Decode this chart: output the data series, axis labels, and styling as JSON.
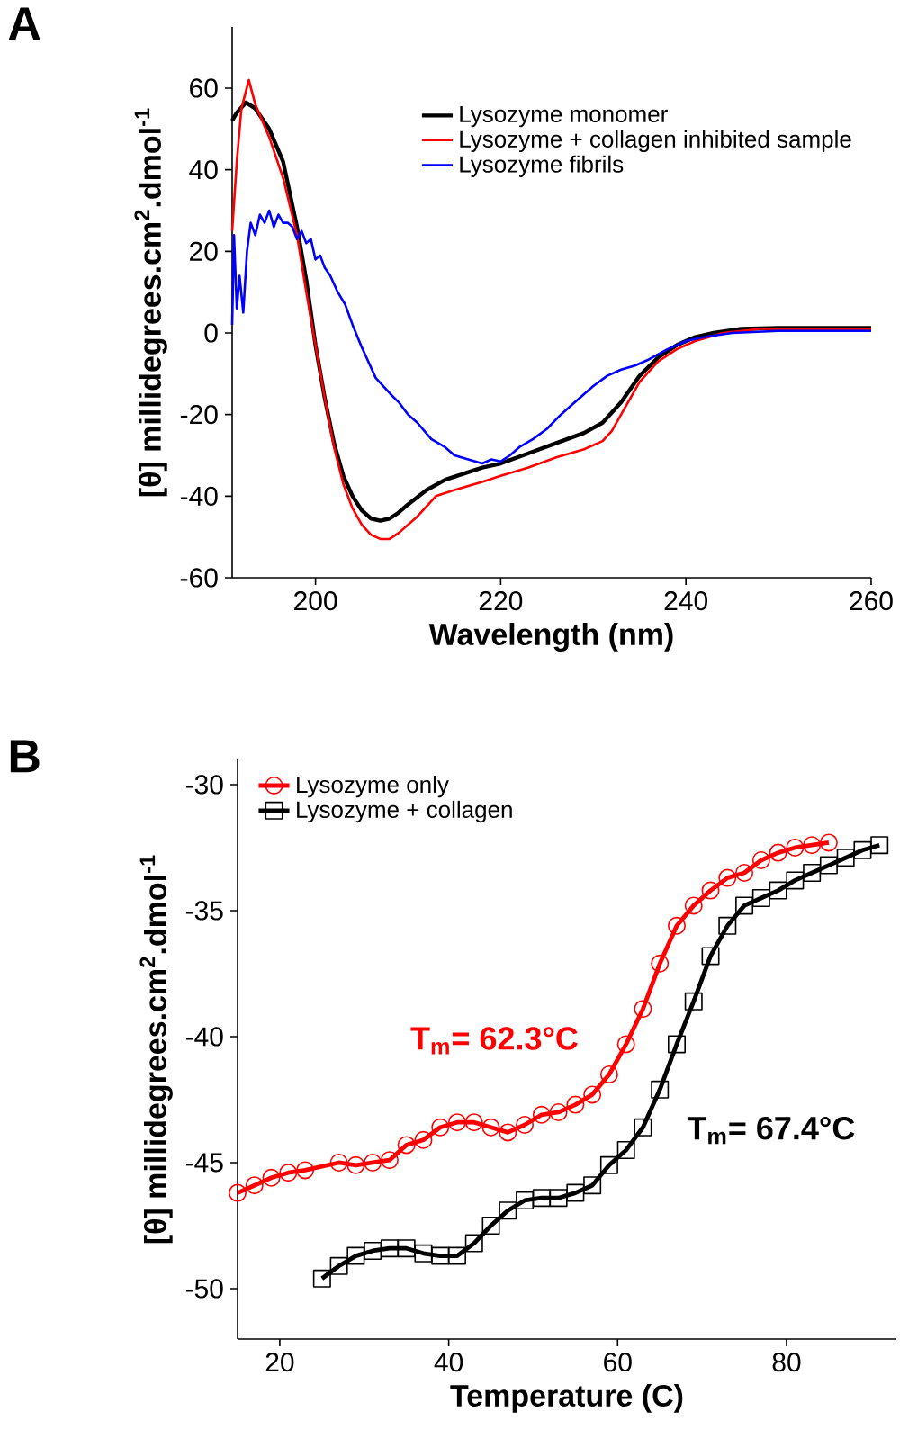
{
  "chart_data": [
    {
      "type": "line",
      "xlabel": "Wavelength (nm)",
      "ylabel": "[θ] millidegrees.cm$^{2}$.dmol$^{-1}$",
      "annotations": [
        "A"
      ],
      "xlim": [
        191,
        260
      ],
      "ylim": [
        -60,
        75
      ],
      "xticks": [
        200,
        220,
        240,
        260
      ],
      "yticks": [
        -60,
        -40,
        -20,
        0,
        20,
        40,
        60
      ],
      "legend": "top right",
      "series": [
        {
          "name": "Lysozyme monomer",
          "color": "#000000",
          "x": [
            191,
            191.5,
            192.5,
            193.5,
            195,
            196.5,
            198,
            199,
            200,
            201,
            202,
            203,
            204,
            205,
            206,
            207,
            208,
            209,
            210,
            212,
            214,
            216,
            218,
            220,
            223,
            226,
            229,
            231,
            233,
            235,
            237,
            239,
            241,
            243,
            246,
            250,
            255,
            260
          ],
          "values": [
            52,
            54,
            56.5,
            55,
            50,
            42,
            26,
            13,
            -3,
            -16,
            -27,
            -35,
            -40,
            -43.5,
            -45.5,
            -46,
            -45.5,
            -44,
            -42,
            -38.5,
            -36,
            -34.5,
            -33,
            -32,
            -29.5,
            -27,
            -24.5,
            -22,
            -17,
            -10.5,
            -6,
            -3,
            -1,
            0,
            1,
            1.2,
            1.2,
            1.2
          ]
        },
        {
          "name": "Lysozyme + collagen inhibited sample",
          "color": "#ff0000",
          "x": [
            191,
            191.5,
            192,
            192.8,
            193.5,
            195,
            196.5,
            198,
            199,
            200,
            201,
            202,
            203,
            204,
            205,
            206,
            207,
            208,
            209,
            210,
            211,
            212,
            213,
            215,
            218,
            220,
            223,
            226,
            229,
            231,
            232,
            233,
            235,
            237,
            239,
            241,
            244,
            248,
            255,
            260
          ],
          "values": [
            25,
            42,
            55,
            62,
            56,
            48,
            38,
            24,
            10,
            -3,
            -16,
            -28,
            -37,
            -43,
            -47,
            -49.5,
            -50.5,
            -50.5,
            -49,
            -47,
            -45,
            -42.5,
            -40,
            -38.5,
            -36.5,
            -35,
            -33,
            -30.5,
            -28.5,
            -26.5,
            -24,
            -20,
            -12,
            -7,
            -4,
            -2,
            0,
            1,
            1,
            1
          ]
        },
        {
          "name": "Lysozyme fibrils",
          "color": "#0000ff",
          "x": [
            191,
            191.2,
            191.5,
            191.8,
            192.2,
            192.6,
            193,
            193.5,
            194,
            194.5,
            195,
            195.5,
            196,
            196.5,
            197,
            197.5,
            198,
            198.5,
            199,
            199.5,
            200,
            200.5,
            201,
            201.6,
            202.4,
            203.2,
            204,
            204.9,
            205.7,
            206.5,
            207.3,
            208.1,
            209,
            210,
            211,
            212.5,
            214,
            215,
            216.5,
            218,
            219,
            220,
            221,
            222,
            223.5,
            225,
            226.5,
            228,
            229,
            230,
            231.5,
            233,
            234.5,
            236,
            238,
            240,
            242,
            245,
            250,
            255,
            260
          ],
          "values": [
            2,
            24,
            6,
            14,
            5,
            20,
            27,
            24,
            29,
            27,
            30,
            26,
            29,
            27,
            27,
            26,
            23,
            25,
            22,
            23,
            18,
            19,
            16,
            14,
            10,
            7,
            2,
            -3,
            -7,
            -11,
            -13,
            -15,
            -17,
            -20,
            -22,
            -26,
            -28,
            -30,
            -31,
            -32,
            -31,
            -31.5,
            -30,
            -28,
            -26,
            -23.5,
            -20,
            -17,
            -15,
            -13,
            -10.5,
            -9,
            -8,
            -6.5,
            -4,
            -2,
            -1,
            0,
            0.5,
            0.5,
            0.5
          ]
        }
      ]
    },
    {
      "type": "line",
      "xlabel": "Temperature (C)",
      "ylabel": "[θ] millidegrees.cm$^{2}$.dmol$^{-1}$",
      "annotations": [
        "B",
        "T$_{m}$= 62.3°C",
        "T$_{m}$= 67.4°C"
      ],
      "xlim": [
        15,
        93
      ],
      "ylim": [
        -52,
        -29
      ],
      "xticks": [
        20,
        40,
        60,
        80
      ],
      "yticks": [
        -50,
        -45,
        -40,
        -35,
        -30
      ],
      "legend": "top left",
      "series": [
        {
          "name": "Lysozyme only",
          "color": "#ff0000",
          "marker": "circle",
          "x": [
            15,
            17,
            19,
            21,
            23,
            27,
            29,
            31,
            33,
            35,
            37,
            39,
            41,
            43,
            45,
            47,
            49,
            51,
            53,
            55,
            57,
            59,
            61,
            63,
            65,
            67,
            69,
            71,
            73,
            75,
            77,
            79,
            81,
            83,
            85
          ],
          "values": [
            -46.2,
            -45.9,
            -45.6,
            -45.4,
            -45.3,
            -45.0,
            -45.1,
            -45.0,
            -44.9,
            -44.3,
            -44.1,
            -43.6,
            -43.4,
            -43.4,
            -43.6,
            -43.8,
            -43.5,
            -43.1,
            -43.0,
            -42.7,
            -42.3,
            -41.5,
            -40.3,
            -38.9,
            -37.1,
            -35.6,
            -34.8,
            -34.2,
            -33.7,
            -33.5,
            -33.0,
            -32.7,
            -32.5,
            -32.4,
            -32.3
          ]
        },
        {
          "name": "Lysozyme + collagen",
          "color": "#000000",
          "marker": "square",
          "x": [
            25,
            27,
            29,
            31,
            33,
            35,
            37,
            39,
            41,
            43,
            45,
            47,
            49,
            51,
            53,
            55,
            57,
            59,
            61,
            63,
            65,
            67,
            69,
            71,
            73,
            75,
            77,
            79,
            81,
            83,
            85,
            87,
            89,
            91
          ],
          "values": [
            -49.6,
            -49.1,
            -48.7,
            -48.5,
            -48.4,
            -48.4,
            -48.6,
            -48.7,
            -48.7,
            -48.2,
            -47.5,
            -46.9,
            -46.5,
            -46.4,
            -46.4,
            -46.2,
            -45.9,
            -45.1,
            -44.5,
            -43.6,
            -42.1,
            -40.3,
            -38.6,
            -36.8,
            -35.6,
            -34.8,
            -34.5,
            -34.2,
            -33.8,
            -33.5,
            -33.2,
            -32.9,
            -32.6,
            -32.4
          ]
        }
      ]
    }
  ]
}
